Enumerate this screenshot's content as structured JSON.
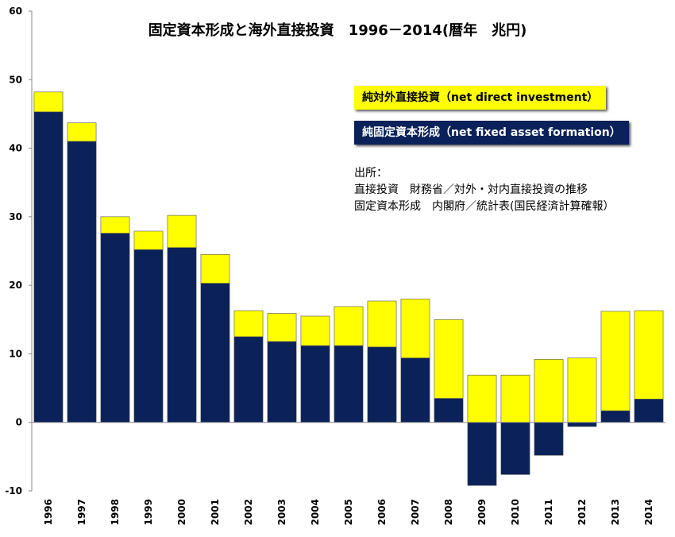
{
  "chart_data": {
    "type": "bar",
    "stacked": true,
    "title": "固定資本形成と海外直接投資　1996－2014(暦年　兆円)",
    "xlabel": "",
    "ylabel": "",
    "ylim": [
      -10,
      60
    ],
    "yticks": [
      -10,
      0,
      10,
      20,
      30,
      40,
      50,
      60
    ],
    "grid": false,
    "categories": [
      "1996",
      "1997",
      "1998",
      "1999",
      "2000",
      "2001",
      "2002",
      "2003",
      "2004",
      "2005",
      "2006",
      "2007",
      "2008",
      "2009",
      "2010",
      "2011",
      "2012",
      "2013",
      "2014"
    ],
    "series": [
      {
        "name": "純固定資本形成（net fixed asset formation）",
        "color": "#0a2159",
        "values": [
          45.3,
          41.0,
          27.6,
          25.2,
          25.5,
          20.3,
          12.5,
          11.8,
          11.2,
          11.2,
          11.0,
          9.4,
          3.5,
          -9.2,
          -7.6,
          -4.8,
          -0.6,
          1.7,
          3.4
        ]
      },
      {
        "name": "純対外直接投資（net direct investment）",
        "color": "#ffff00",
        "values": [
          2.9,
          2.7,
          2.4,
          2.7,
          4.7,
          4.2,
          3.8,
          4.1,
          4.3,
          5.7,
          6.7,
          8.6,
          11.5,
          6.9,
          6.9,
          9.2,
          9.4,
          14.5,
          12.9
        ]
      }
    ],
    "legend_position": "top-right",
    "annotation": {
      "heading": "出所：",
      "lines": [
        "直接投資　財務省／対外・対内直接投資の推移",
        "固定資本形成　内閣府／統計表(国民経済計算確報）"
      ]
    }
  }
}
